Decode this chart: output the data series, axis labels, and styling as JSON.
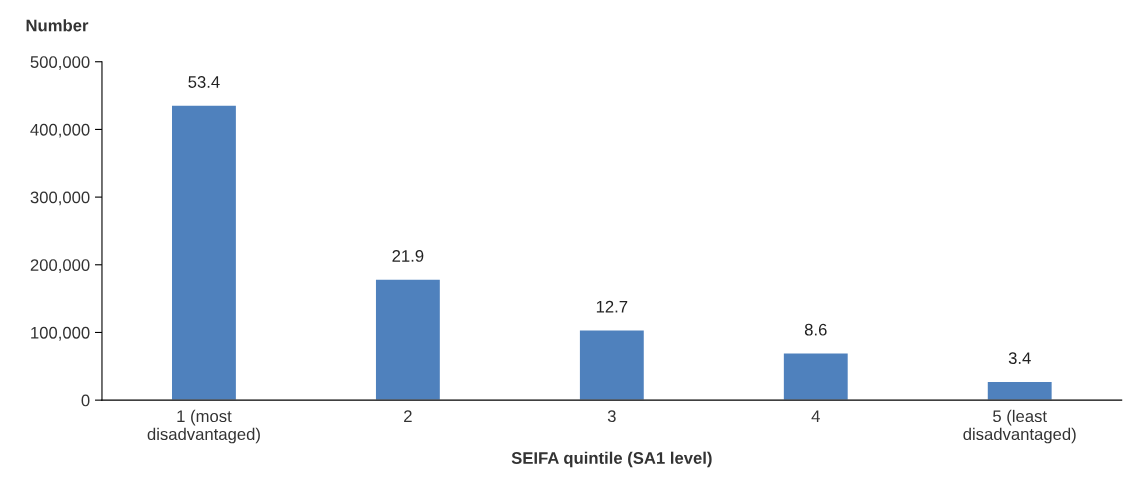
{
  "chart_data": {
    "type": "bar",
    "categories": [
      "1 (most\ndisadvantaged)",
      "2",
      "3",
      "4",
      "5 (least\ndisadvantaged)"
    ],
    "values": [
      436000,
      179000,
      104000,
      70000,
      28000
    ],
    "annotations": [
      {
        "text": "53.4",
        "x": "1 (most\ndisadvantaged)",
        "y": 436000
      },
      {
        "text": "21.9",
        "x": "2",
        "y": 179000
      },
      {
        "text": "12.7",
        "x": "3",
        "y": 104000
      },
      {
        "text": "8.6",
        "x": "4",
        "y": 70000
      },
      {
        "text": "3.4",
        "x": "5 (least\ndisadvantaged)",
        "y": 28000
      }
    ],
    "color": "#4f81bd",
    "ylabel": "Number",
    "xlabel": "SEIFA quintile (SA1 level)",
    "ylim": [
      0,
      500000
    ],
    "yticks": [
      0,
      {
        "value": 100000,
        "label": "100,000"
      },
      {
        "value": 200000,
        "label": "200,000"
      },
      {
        "value": 300000,
        "label": "300,000"
      },
      {
        "value": 400000,
        "label": "400,000"
      },
      {
        "value": 500000,
        "label": "500,000"
      }
    ],
    "grid": false
  }
}
